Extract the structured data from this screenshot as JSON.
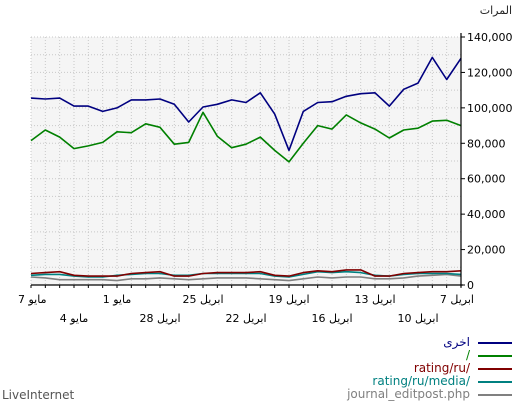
{
  "footer_text": "LiveInternet",
  "chart_data": {
    "type": "line",
    "ylabel": "المرات",
    "ylim": [
      0,
      140000
    ],
    "y_ticks": [
      "140,000",
      "120,000",
      "100,000",
      "80,000",
      "60,000",
      "40,000",
      "20,000",
      "0"
    ],
    "y_tick_values": [
      140000,
      120000,
      100000,
      80000,
      60000,
      40000,
      20000,
      0
    ],
    "x_ticks_upper": [
      "7 مايو",
      "1 مايو",
      "25 ابريل",
      "19 ابريل",
      "13 ابريل",
      "7 ابريل"
    ],
    "x_ticks_lower": [
      "4 مايو",
      "28 ابريل",
      "22 ابريل",
      "16 ابريل",
      "10 ابريل"
    ],
    "grid": true,
    "legend_position": "bottom-right",
    "series": [
      {
        "name": "اخرى",
        "color": "#000080",
        "values": [
          105500,
          105000,
          105500,
          101000,
          101000,
          98000,
          100000,
          104500,
          104500,
          105000,
          102000,
          92000,
          100500,
          102000,
          104500,
          103000,
          108500,
          96500,
          76000,
          98000,
          103000,
          103500,
          106500,
          108000,
          108500,
          101000,
          110500,
          114000,
          128500,
          116000,
          128000
        ]
      },
      {
        "name": "/",
        "color": "#008000",
        "values": [
          81500,
          87500,
          83500,
          77000,
          78500,
          80500,
          86500,
          86000,
          91000,
          89000,
          79500,
          80500,
          97500,
          84000,
          77500,
          79500,
          83500,
          76000,
          69500,
          80000,
          90000,
          88000,
          96000,
          91500,
          88000,
          83000,
          87500,
          88500,
          92500,
          93000,
          90000
        ]
      },
      {
        "name": "rating/ru/",
        "color": "#800000",
        "values": [
          6500,
          7000,
          7500,
          5500,
          5000,
          5000,
          5000,
          6500,
          7000,
          7500,
          5000,
          5000,
          6500,
          7000,
          7000,
          7000,
          7500,
          5500,
          5000,
          7000,
          8000,
          7500,
          8500,
          8500,
          5000,
          5000,
          6500,
          7000,
          7500,
          7500,
          8000
        ]
      },
      {
        "name": "rating/ru/media/",
        "color": "#008080",
        "values": [
          5500,
          6000,
          6000,
          5000,
          4500,
          4500,
          5500,
          6000,
          6500,
          6500,
          5500,
          5500,
          6500,
          6500,
          6500,
          6500,
          6500,
          5000,
          4500,
          6000,
          7500,
          7000,
          7500,
          7000,
          5500,
          5000,
          6000,
          6500,
          6500,
          6500,
          6000
        ]
      },
      {
        "name": "journal_editpost.php",
        "color": "#808080",
        "values": [
          4500,
          4000,
          3000,
          3000,
          3000,
          3000,
          2500,
          3500,
          3500,
          4000,
          3500,
          3000,
          3500,
          4000,
          4000,
          4000,
          3500,
          3000,
          2500,
          3500,
          4500,
          4000,
          4500,
          4500,
          3500,
          3500,
          4000,
          5000,
          5500,
          6000,
          5000
        ]
      }
    ]
  }
}
